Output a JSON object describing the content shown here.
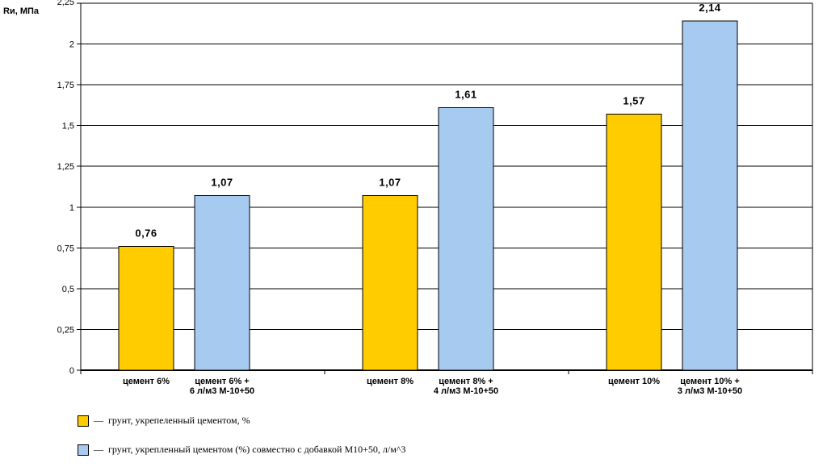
{
  "chart_data": {
    "type": "bar",
    "ylabel": "Rи, МПа",
    "ylim": [
      0,
      2.25
    ],
    "yticks": [
      "0",
      "0,25",
      "0,5",
      "0,75",
      "1",
      "1,25",
      "1,5",
      "1,75",
      "2",
      "2,25"
    ],
    "grid": true,
    "groups": [
      {
        "bars": [
          {
            "series": 0,
            "value": 0.76,
            "label": "0,76",
            "category": [
              "цемент 6%"
            ]
          },
          {
            "series": 1,
            "value": 1.07,
            "label": "1,07",
            "category": [
              "цемент 6% +",
              "6 л/м3 М-10+50"
            ]
          }
        ]
      },
      {
        "bars": [
          {
            "series": 0,
            "value": 1.07,
            "label": "1,07",
            "category": [
              "цемент 8%"
            ]
          },
          {
            "series": 1,
            "value": 1.61,
            "label": "1,61",
            "category": [
              "цемент 8% +",
              "4 л/м3 М-10+50"
            ]
          }
        ]
      },
      {
        "bars": [
          {
            "series": 0,
            "value": 1.57,
            "label": "1,57",
            "category": [
              "цемент 10%"
            ]
          },
          {
            "series": 1,
            "value": 2.14,
            "label": "2,14",
            "category": [
              "цемент 10% +",
              "3 л/м3 М-10+50"
            ]
          }
        ]
      }
    ],
    "series": [
      {
        "name": "грунт, укрепеленный цементом, %",
        "color": "#FFCC00"
      },
      {
        "name": "грунт, укрепленный цементом (%) совместно с добавкой М10+50, л/м^3",
        "color": "#A6CAF0"
      }
    ],
    "legend_dash": "—",
    "legend_position": "bottom-left"
  }
}
